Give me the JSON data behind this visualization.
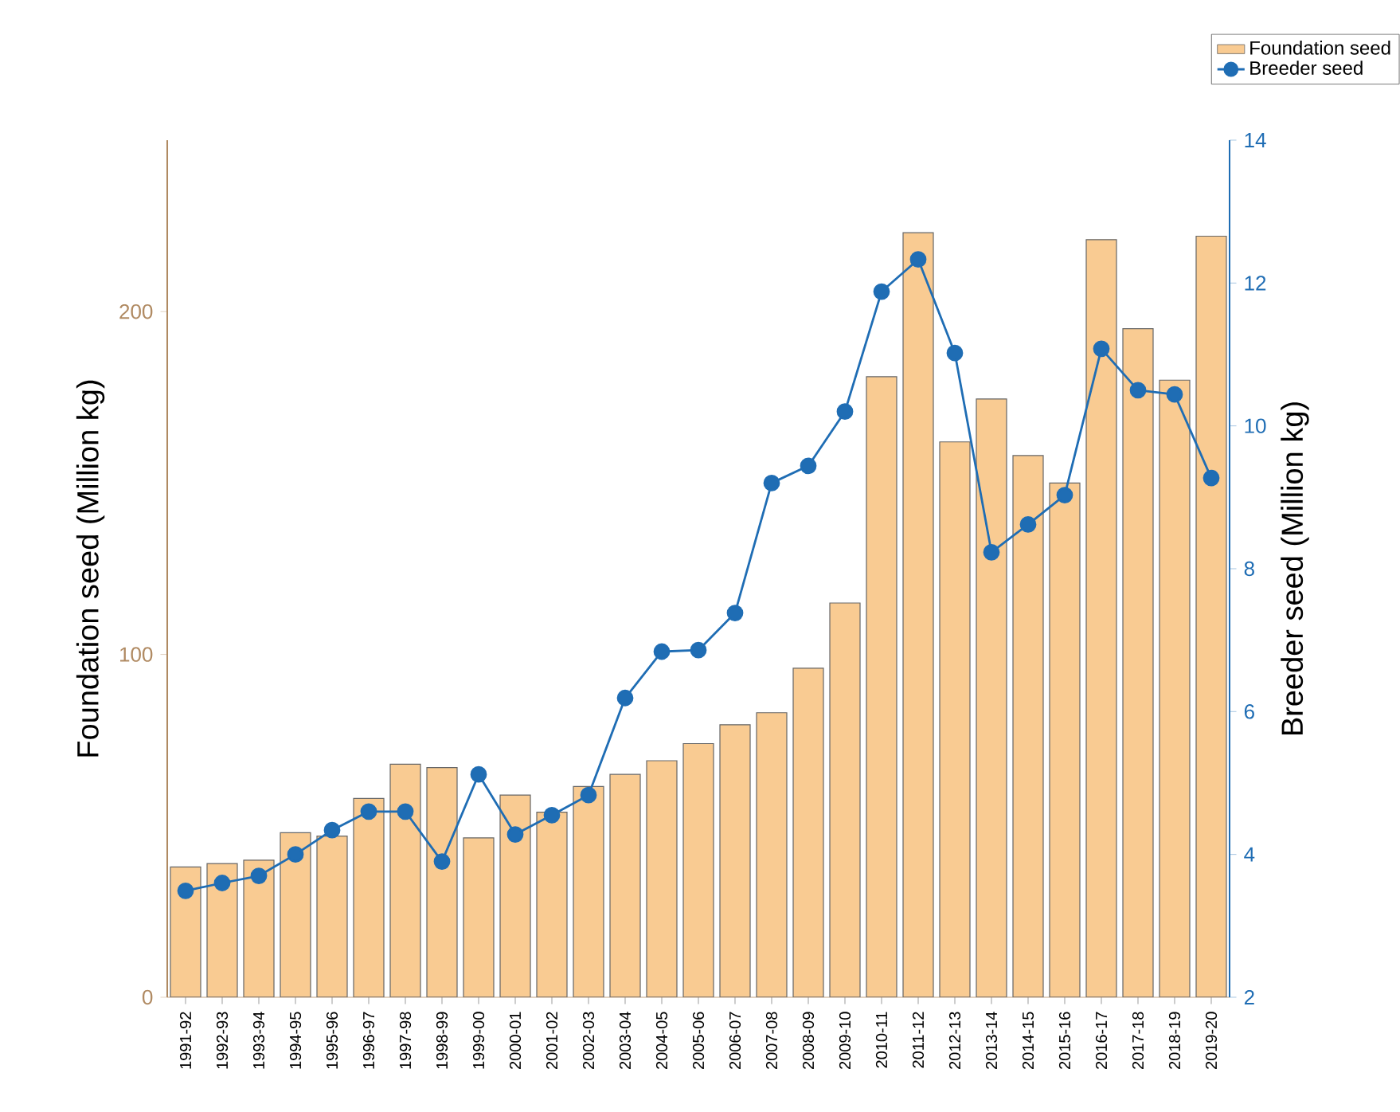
{
  "chart_data": {
    "type": "bar",
    "categories": [
      "1991-92",
      "1992-93",
      "1993-94",
      "1994-95",
      "1995-96",
      "1996-97",
      "1997-98",
      "1998-99",
      "1999-00",
      "2000-01",
      "2001-02",
      "2002-03",
      "2003-04",
      "2004-05",
      "2005-06",
      "2006-07",
      "2007-08",
      "2008-09",
      "2009-10",
      "2010-11",
      "2011-12",
      "2012-13",
      "2013-14",
      "2014-15",
      "2015-16",
      "2016-17",
      "2017-18",
      "2018-19",
      "2019-20"
    ],
    "series": [
      {
        "name": "Foundation seed",
        "color": "#f9cb92",
        "values": [
          38,
          39,
          40,
          48,
          47,
          58,
          68,
          67,
          46.5,
          59,
          54,
          61.5,
          65,
          69,
          74,
          79.5,
          83,
          96,
          115,
          181,
          223,
          162,
          174.5,
          158,
          150,
          221,
          195,
          180,
          222
        ]
      },
      {
        "name": "Breeder seed",
        "type": "line",
        "axis": "y2",
        "color": "#1f6db4",
        "values": [
          3.49,
          3.6,
          3.7,
          4.0,
          4.34,
          4.6,
          4.6,
          3.9,
          5.12,
          4.28,
          4.55,
          4.83,
          6.19,
          6.84,
          6.86,
          7.38,
          9.2,
          9.44,
          10.2,
          11.88,
          12.33,
          11.02,
          8.23,
          8.62,
          9.03,
          11.08,
          10.5,
          10.44,
          9.27
        ]
      }
    ],
    "ylabel": "Foundation seed (Million kg)",
    "y2label": "Breeder seed (Million kg)",
    "ylim": [
      0,
      250
    ],
    "yticks": [
      0,
      100,
      200
    ],
    "y2lim": [
      2,
      14
    ],
    "y2ticks": [
      2,
      4,
      6,
      8,
      10,
      12,
      14
    ],
    "marker": "circle",
    "line_style": "solid",
    "legend": "top right",
    "grid": false
  }
}
